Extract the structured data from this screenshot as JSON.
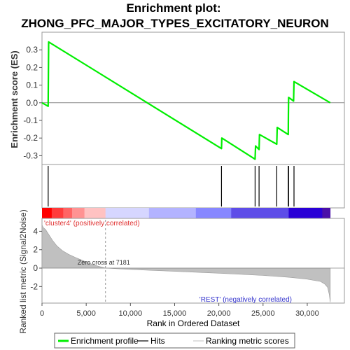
{
  "chart_data": {
    "type": "line",
    "title_line1": "Enrichment plot:",
    "title_line2": "ZHONG_PFC_MAJOR_TYPES_EXCITATORY_NEURON",
    "es_panel": {
      "ylabel": "Enrichment score (ES)",
      "ylim": [
        -0.35,
        0.4
      ],
      "yticks": [
        {
          "v": 0.3,
          "label": "0.3"
        },
        {
          "v": 0.2,
          "label": "0.2"
        },
        {
          "v": 0.1,
          "label": "0.1"
        },
        {
          "v": 0.0,
          "label": "0.0"
        },
        {
          "v": -0.1,
          "label": "-0.1"
        },
        {
          "v": -0.2,
          "label": "-0.2"
        },
        {
          "v": -0.3,
          "label": "-0.3"
        }
      ],
      "series": [
        {
          "name": "Enrichment profile",
          "color": "#00ee00",
          "points": [
            [
              0,
              0.0
            ],
            [
              700,
              -0.02
            ],
            [
              750,
              0.345
            ],
            [
              20300,
              -0.26
            ],
            [
              20340,
              -0.2
            ],
            [
              24100,
              -0.32
            ],
            [
              24150,
              -0.245
            ],
            [
              24550,
              -0.265
            ],
            [
              24600,
              -0.18
            ],
            [
              26550,
              -0.235
            ],
            [
              26600,
              -0.14
            ],
            [
              27850,
              -0.18
            ],
            [
              27870,
              -0.07
            ],
            [
              27890,
              0.03
            ],
            [
              28450,
              0.01
            ],
            [
              28500,
              0.12
            ],
            [
              32600,
              0.0
            ]
          ]
        }
      ]
    },
    "hits": [
      700,
      20300,
      24100,
      24550,
      26550,
      27850,
      27890,
      28500
    ],
    "rank_bar": {
      "segments": [
        {
          "from": 0,
          "to": 1100,
          "color": "#ff0000"
        },
        {
          "from": 1100,
          "to": 2400,
          "color": "#ff3b3b"
        },
        {
          "from": 2400,
          "to": 3400,
          "color": "#ff6464"
        },
        {
          "from": 3400,
          "to": 4800,
          "color": "#ff9393"
        },
        {
          "from": 4800,
          "to": 7181,
          "color": "#ffc2c2"
        },
        {
          "from": 7181,
          "to": 12100,
          "color": "#d6d6ff"
        },
        {
          "from": 12100,
          "to": 17400,
          "color": "#b3b3ff"
        },
        {
          "from": 17400,
          "to": 21400,
          "color": "#8787ff"
        },
        {
          "from": 21400,
          "to": 27900,
          "color": "#5e4de8"
        },
        {
          "from": 27900,
          "to": 31700,
          "color": "#2a00d6"
        },
        {
          "from": 31700,
          "to": 32600,
          "color": "#4a0fa8"
        }
      ]
    },
    "metric_panel": {
      "ylabel": "Ranked list metric (Signal2Noise)",
      "ylim": [
        -3.8,
        5.4
      ],
      "yticks": [
        {
          "v": 4,
          "label": "4"
        },
        {
          "v": 2,
          "label": "2"
        },
        {
          "v": 0,
          "label": "0"
        },
        {
          "v": -2,
          "label": "-2"
        }
      ],
      "profile": [
        [
          0,
          4.7
        ],
        [
          150,
          4.4
        ],
        [
          400,
          4.2
        ],
        [
          800,
          3.6
        ],
        [
          1200,
          3.0
        ],
        [
          1700,
          2.4
        ],
        [
          2300,
          1.9
        ],
        [
          3000,
          1.5
        ],
        [
          3800,
          1.15
        ],
        [
          4800,
          0.75
        ],
        [
          6000,
          0.3
        ],
        [
          7181,
          0.0
        ],
        [
          10000,
          -0.15
        ],
        [
          15000,
          -0.35
        ],
        [
          20000,
          -0.55
        ],
        [
          25000,
          -0.8
        ],
        [
          28000,
          -1.0
        ],
        [
          30000,
          -1.2
        ],
        [
          31500,
          -1.45
        ],
        [
          32000,
          -1.75
        ],
        [
          32300,
          -2.1
        ],
        [
          32500,
          -2.9
        ],
        [
          32600,
          -3.7
        ]
      ],
      "zero_cross_rank": 7181,
      "zero_cross_label": "Zero cross at 7181",
      "pos_label": "'cluster4' (positively correlated)",
      "neg_label": "'REST' (negatively correlated)"
    },
    "xaxis": {
      "xlabel": "Rank in Ordered Dataset",
      "xlim": [
        0,
        34200
      ],
      "xticks": [
        {
          "v": 0,
          "label": "0"
        },
        {
          "v": 5000,
          "label": "5,000"
        },
        {
          "v": 10000,
          "label": "10,000"
        },
        {
          "v": 15000,
          "label": "15,000"
        },
        {
          "v": 20000,
          "label": "20,000"
        },
        {
          "v": 25000,
          "label": "25,000"
        },
        {
          "v": 30000,
          "label": "30,000"
        }
      ]
    },
    "legend": [
      {
        "label": "Enrichment profile",
        "color": "#00ee00",
        "kind": "thick"
      },
      {
        "label": "Hits",
        "color": "#000000",
        "kind": "thin"
      },
      {
        "label": "Ranking metric scores",
        "color": "#cccccc",
        "kind": "thin"
      }
    ]
  }
}
